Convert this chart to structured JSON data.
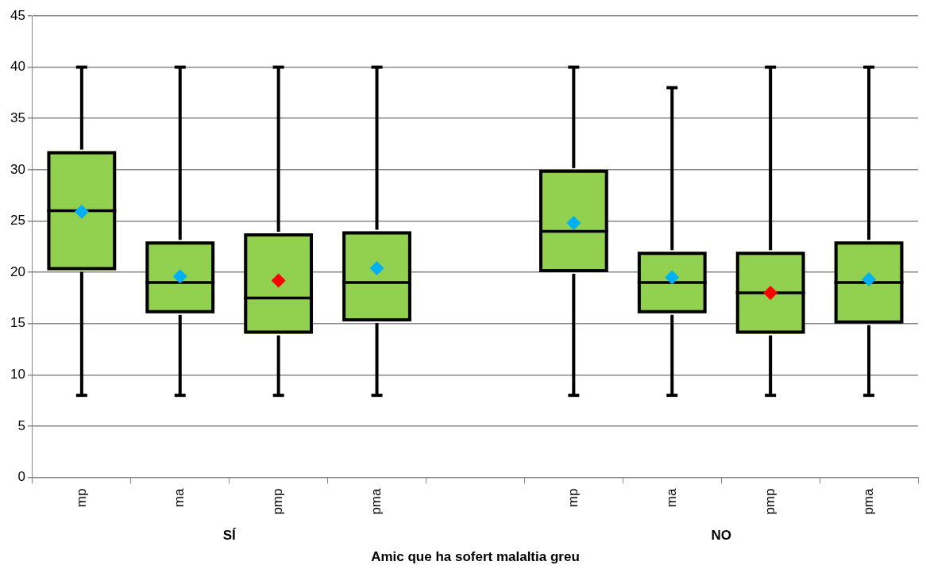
{
  "chart_data": {
    "type": "box",
    "xlabel": "Amic que ha sofert malaltia greu",
    "categories": [
      "mp",
      "ma",
      "pmp",
      "pma",
      null,
      "mp",
      "ma",
      "pmp",
      "pma"
    ],
    "annotations": [
      "SÍ",
      "NO"
    ],
    "series": [
      {
        "type": "box",
        "color": "#92d050",
        "boxes": [
          {
            "low": 8,
            "q1": 20.2,
            "median": 26,
            "q3": 31.8,
            "high": 40
          },
          {
            "low": 8,
            "q1": 16,
            "median": 19,
            "q3": 23,
            "high": 40
          },
          {
            "low": 8,
            "q1": 14,
            "median": 17.5,
            "q3": 23.8,
            "high": 40
          },
          {
            "low": 8,
            "q1": 15.2,
            "median": 19,
            "q3": 24,
            "high": 40
          },
          null,
          {
            "low": 8,
            "q1": 20,
            "median": 24,
            "q3": 30,
            "high": 40
          },
          {
            "low": 8,
            "q1": 16,
            "median": 19,
            "q3": 22,
            "high": 38
          },
          {
            "low": 8,
            "q1": 14,
            "median": 18,
            "q3": 22,
            "high": 40
          },
          {
            "low": 8,
            "q1": 15,
            "median": 19,
            "q3": 23,
            "high": 40
          }
        ]
      },
      {
        "type": "scatter",
        "marker": "diamond",
        "colors": [
          "#00b0f0",
          "#00b0f0",
          "#ff0000",
          "#00b0f0",
          null,
          "#00b0f0",
          "#00b0f0",
          "#ff0000",
          "#00b0f0"
        ],
        "values": [
          25.9,
          19.6,
          19.2,
          20.4,
          null,
          24.8,
          19.5,
          18,
          19.3
        ]
      }
    ],
    "ylim": [
      0,
      45
    ],
    "yticks": [
      0,
      5,
      10,
      15,
      20,
      25,
      30,
      35,
      40,
      45
    ],
    "grid": "y"
  }
}
